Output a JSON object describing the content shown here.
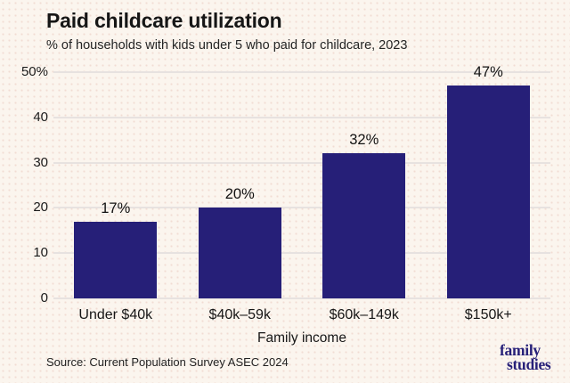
{
  "page": {
    "background_color": "#FBF5EE",
    "texture_dot_color": "#E9C4B8"
  },
  "header": {
    "title": "Paid childcare utilization",
    "subtitle": "% of households with kids under 5 who paid for childcare, 2023"
  },
  "chart_data": {
    "type": "bar",
    "title": "Paid childcare utilization",
    "subtitle": "% of households with kids under 5 who paid for childcare, 2023",
    "categories": [
      "Under $40k",
      "$40k–59k",
      "$60k–149k",
      "$150k+"
    ],
    "values": [
      17,
      20,
      32,
      47
    ],
    "value_labels": [
      "17%",
      "20%",
      "32%",
      "47%"
    ],
    "xlabel": "Family income",
    "ylabel": "",
    "ylim": [
      0,
      50
    ],
    "yticks": [
      {
        "value": 0,
        "label": "0"
      },
      {
        "value": 10,
        "label": "10"
      },
      {
        "value": 20,
        "label": "20"
      },
      {
        "value": 30,
        "label": "30"
      },
      {
        "value": 40,
        "label": "40"
      },
      {
        "value": 50,
        "label": "50%"
      }
    ],
    "grid": "horizontal",
    "legend": "none",
    "bar_color": "#261F78",
    "gridline_color": "#E7E2E0"
  },
  "footer": {
    "source": "Source: Current Population Survey ASEC 2024",
    "logo_line1": "family",
    "logo_line2": "studies",
    "logo_color": "#261F78"
  }
}
